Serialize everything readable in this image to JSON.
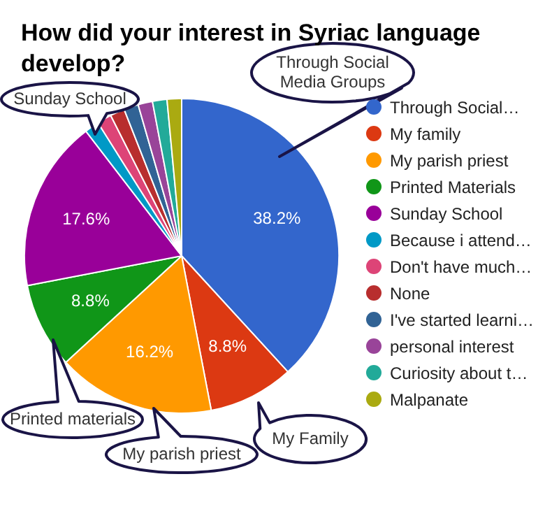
{
  "chart_data": {
    "type": "pie",
    "title": "How did your interest in Syriac language develop?",
    "categories": [
      "Through Social…",
      "My family",
      "My parish priest",
      "Printed Materials",
      "Sunday School",
      "Because i attend…",
      "Don't have much…",
      "None",
      "I've started learni…",
      "personal interest",
      "Curiosity about t…",
      "Malpanate"
    ],
    "values": [
      38.2,
      8.8,
      16.2,
      8.8,
      17.6,
      1.49,
      1.49,
      1.49,
      1.49,
      1.49,
      1.49,
      1.49
    ],
    "value_labels": [
      "38.2%",
      "8.8%",
      "16.2%",
      "8.8%",
      "17.6%",
      null,
      null,
      null,
      null,
      null,
      null,
      null
    ],
    "colors": [
      "#3366cc",
      "#dc3912",
      "#ff9900",
      "#109618",
      "#990099",
      "#0099c6",
      "#dd4477",
      "#b82e2e",
      "#316395",
      "#994499",
      "#22aa99",
      "#aaaa11"
    ],
    "annotations": [
      "Through Social Media Groups",
      "My Family",
      "My parish priest",
      "Printed materials",
      "Sunday School"
    ],
    "legend": "right"
  }
}
